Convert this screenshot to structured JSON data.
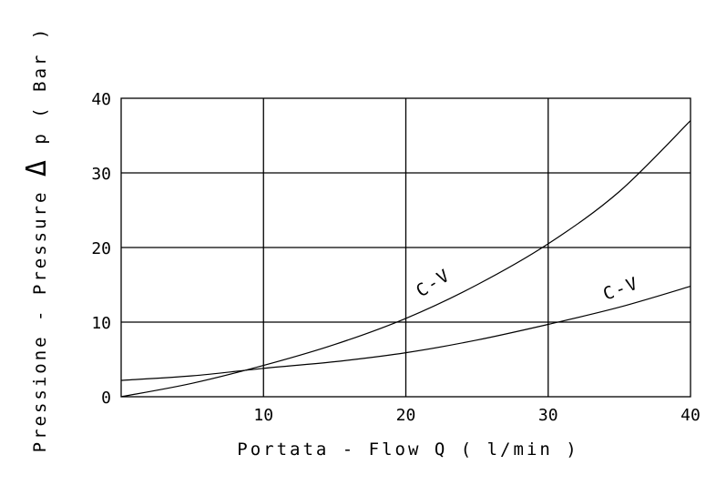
{
  "chart_data": {
    "type": "line",
    "xlabel": "Portata - Flow  Q ( l/min )",
    "ylabel_prefix": "Pressione - Pressure",
    "ylabel_symbol": "Δ",
    "ylabel_suffix": "p ( Bar )",
    "xlim": [
      0,
      40
    ],
    "ylim": [
      0,
      40
    ],
    "x_ticks": [
      "10",
      "20",
      "30",
      "40"
    ],
    "y_ticks": [
      "0",
      "10",
      "20",
      "30",
      "40"
    ],
    "grid": true,
    "series": [
      {
        "name": "C-V",
        "x": [
          0,
          5,
          10,
          15,
          20,
          25,
          30,
          35,
          40
        ],
        "y": [
          0,
          1.8,
          4.2,
          7.0,
          10.5,
          15.0,
          20.5,
          27.5,
          37.0
        ]
      },
      {
        "name": "C-V",
        "x": [
          0,
          5,
          10,
          15,
          20,
          25,
          30,
          35,
          40
        ],
        "y": [
          2.2,
          2.8,
          3.8,
          4.7,
          5.9,
          7.6,
          9.7,
          12.0,
          14.8
        ]
      }
    ],
    "labels": [
      "C-V",
      "C-V"
    ]
  }
}
